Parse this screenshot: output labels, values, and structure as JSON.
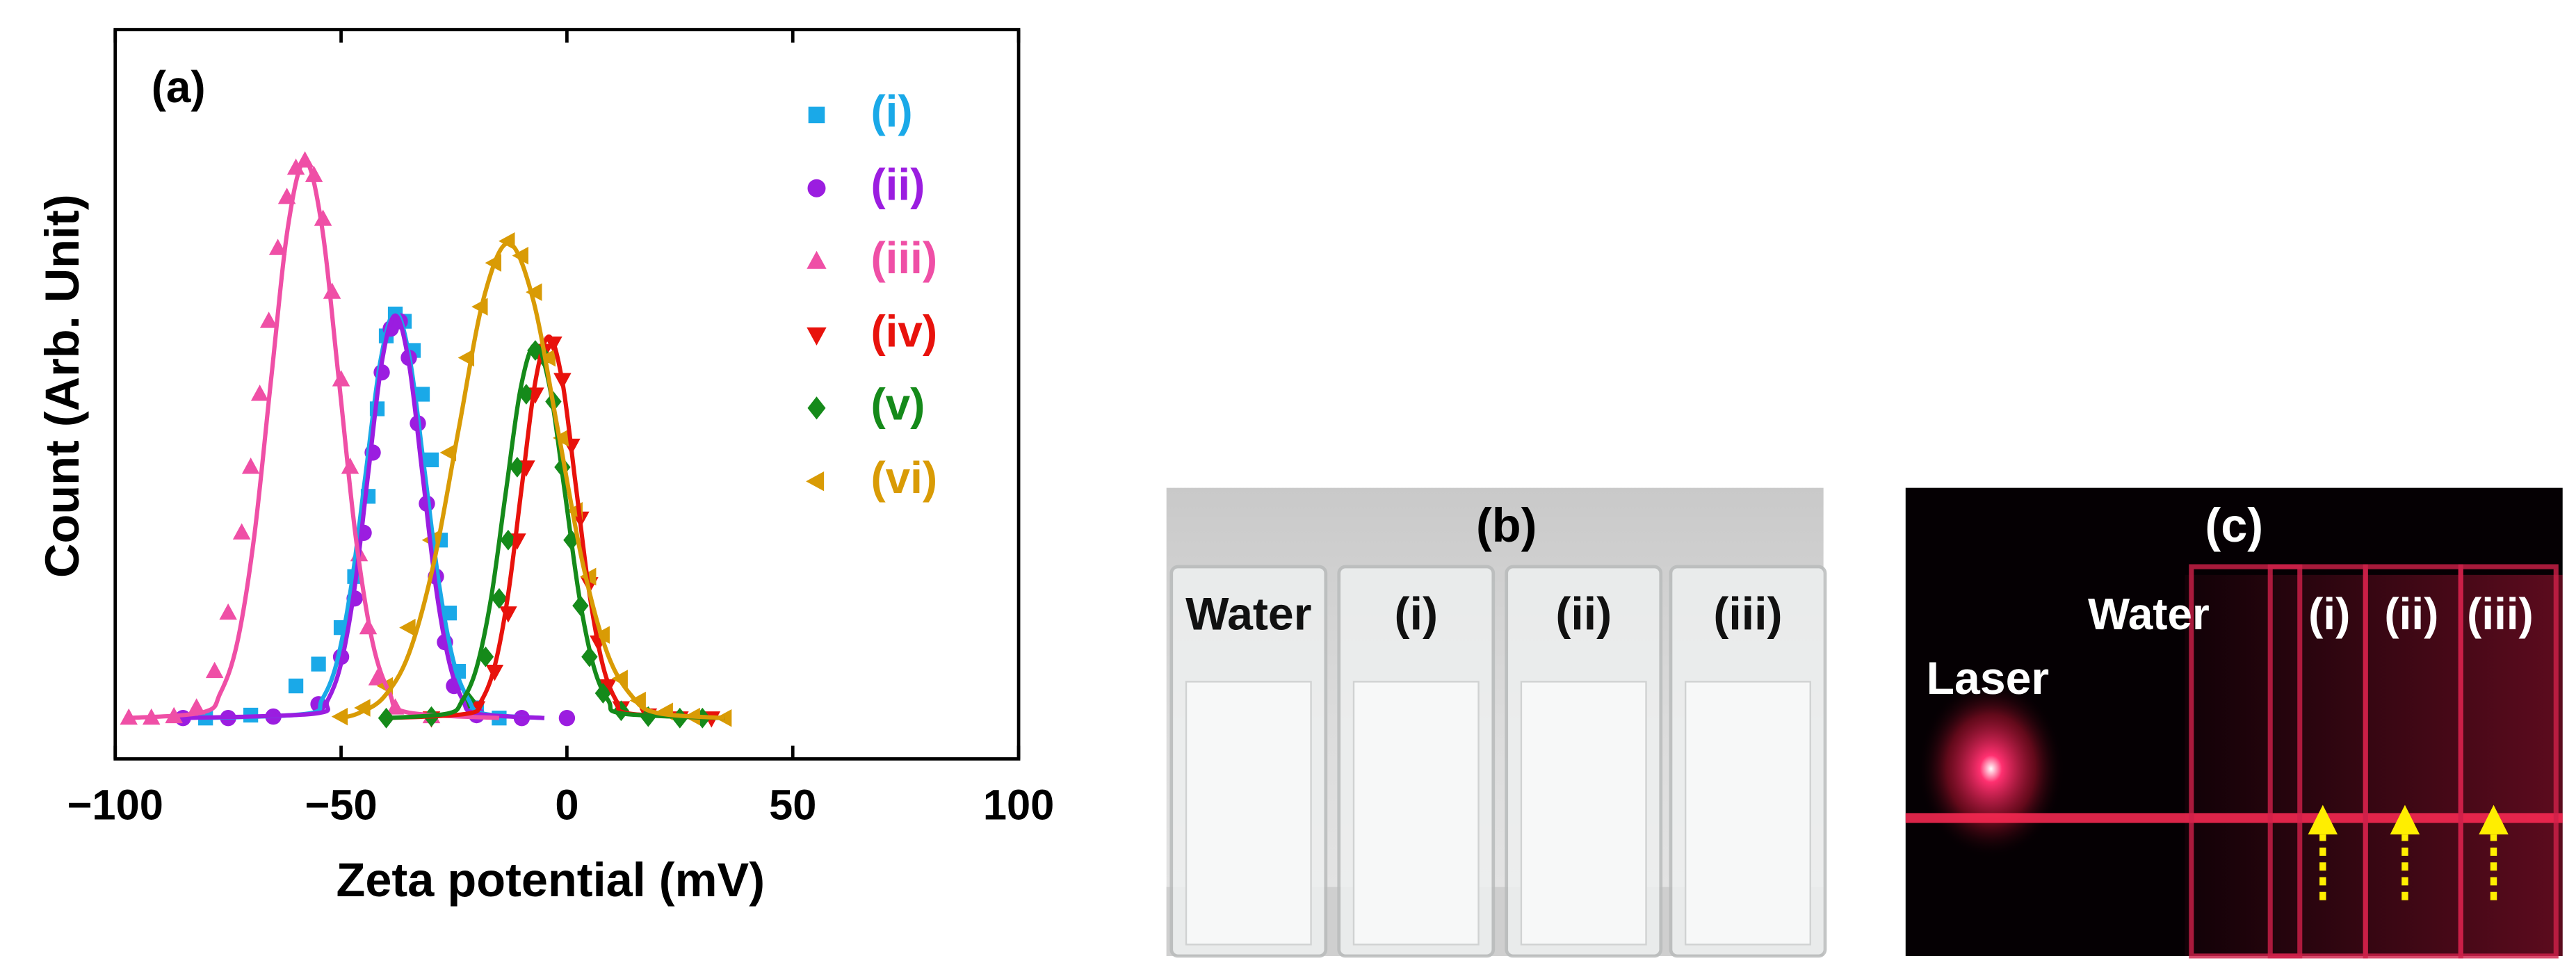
{
  "chart_data": {
    "type": "scatter",
    "panel_label": "(a)",
    "x_label": "Zeta potential (mV)",
    "y_label": "Count (Arb. Unit)",
    "xlim": [
      -100,
      100
    ],
    "xticks": [
      {
        "value": -100,
        "label": "−100"
      },
      {
        "value": -50,
        "label": "−50"
      },
      0,
      50,
      100
    ],
    "ylim": [
      0,
      1
    ],
    "series": [
      {
        "name": "(i)",
        "color": "#1aa9e8",
        "marker": "square",
        "x": [
          -80,
          -70,
          -60,
          -55,
          -50,
          -47,
          -44,
          -42,
          -40,
          -38,
          -36,
          -34,
          -32,
          -30,
          -28,
          -26,
          -24,
          -20,
          -15
        ],
        "values": [
          0.056,
          0.06,
          0.1,
          0.13,
          0.18,
          0.25,
          0.36,
          0.48,
          0.58,
          0.61,
          0.6,
          0.56,
          0.5,
          0.41,
          0.3,
          0.2,
          0.12,
          0.07,
          0.056
        ],
        "fit_x": [
          -80,
          -57.5,
          -54.25,
          -51,
          -47.75,
          -44.5,
          -41.25,
          -38,
          -34.75,
          -31.5,
          -28.25,
          -25,
          -21.75,
          -18.5,
          -5
        ],
        "fit_values": [
          0.056,
          0.062,
          0.081,
          0.131,
          0.237,
          0.394,
          0.547,
          0.613,
          0.547,
          0.394,
          0.237,
          0.131,
          0.081,
          0.062,
          0.056
        ]
      },
      {
        "name": "(ii)",
        "color": "#9b1de0",
        "marker": "circle",
        "x": [
          -85,
          -75,
          -65,
          -55,
          -50,
          -47,
          -45,
          -43,
          -41,
          -39,
          -37,
          -35,
          -33,
          -31,
          -29,
          -27,
          -25,
          -20,
          -10,
          0
        ],
        "values": [
          0.056,
          0.056,
          0.058,
          0.075,
          0.14,
          0.22,
          0.31,
          0.42,
          0.53,
          0.59,
          0.6,
          0.55,
          0.46,
          0.35,
          0.25,
          0.16,
          0.1,
          0.06,
          0.056,
          0.056
        ],
        "fit_x": [
          -85,
          -56,
          -53,
          -50,
          -47,
          -44,
          -41,
          -38,
          -35,
          -32,
          -29,
          -26,
          -23,
          -20,
          -5
        ],
        "fit_values": [
          0.056,
          0.062,
          0.08,
          0.131,
          0.235,
          0.391,
          0.543,
          0.608,
          0.543,
          0.391,
          0.235,
          0.131,
          0.08,
          0.062,
          0.056
        ]
      },
      {
        "name": "(iii)",
        "color": "#ef4fa6",
        "marker": "triangle-up",
        "x": [
          -97,
          -92,
          -87,
          -82,
          -78,
          -75,
          -72,
          -70,
          -68,
          -66,
          -64,
          -62,
          -60,
          -58,
          -56,
          -54,
          -52,
          -50,
          -48,
          -46,
          -44,
          -42,
          -38,
          -30
        ],
        "values": [
          0.056,
          0.056,
          0.058,
          0.07,
          0.12,
          0.2,
          0.31,
          0.4,
          0.5,
          0.6,
          0.7,
          0.77,
          0.81,
          0.82,
          0.8,
          0.74,
          0.64,
          0.52,
          0.4,
          0.28,
          0.18,
          0.11,
          0.07,
          0.058
        ],
        "fit_x": [
          -97,
          -80.5,
          -76.75,
          -73,
          -69.25,
          -65.5,
          -61.75,
          -58,
          -54.25,
          -50.5,
          -46.75,
          -43,
          -39.25,
          -35.5,
          -15
        ],
        "fit_values": [
          0.056,
          0.064,
          0.09,
          0.159,
          0.304,
          0.52,
          0.73,
          0.82,
          0.73,
          0.52,
          0.304,
          0.159,
          0.09,
          0.064,
          0.056
        ]
      },
      {
        "name": "(iv)",
        "color": "#e8120c",
        "marker": "triangle-down",
        "x": [
          -30,
          -20,
          -16,
          -13,
          -11,
          -9,
          -7,
          -5,
          -3,
          -1,
          1,
          3,
          5,
          7,
          9,
          12,
          18,
          25,
          32
        ],
        "values": [
          0.056,
          0.07,
          0.12,
          0.2,
          0.3,
          0.4,
          0.5,
          0.56,
          0.57,
          0.52,
          0.43,
          0.33,
          0.24,
          0.16,
          0.1,
          0.07,
          0.06,
          0.056,
          0.056
        ],
        "fit_x": [
          -40,
          -22,
          -19,
          -16,
          -13,
          -10,
          -7,
          -4,
          -1,
          2,
          5,
          8,
          11,
          14,
          35
        ],
        "fit_values": [
          0.056,
          0.062,
          0.079,
          0.127,
          0.226,
          0.373,
          0.517,
          0.579,
          0.517,
          0.373,
          0.226,
          0.127,
          0.079,
          0.062,
          0.056
        ]
      },
      {
        "name": "(v)",
        "color": "#158a1a",
        "marker": "diamond",
        "x": [
          -40,
          -30,
          -22,
          -18,
          -15,
          -13,
          -11,
          -9,
          -7,
          -5,
          -3,
          -1,
          1,
          3,
          5,
          8,
          12,
          18,
          25,
          30
        ],
        "values": [
          0.056,
          0.058,
          0.08,
          0.14,
          0.22,
          0.3,
          0.4,
          0.5,
          0.56,
          0.55,
          0.49,
          0.4,
          0.3,
          0.21,
          0.14,
          0.09,
          0.066,
          0.058,
          0.056,
          0.056
        ],
        "fit_x": [
          -40,
          -26.5,
          -23.25,
          -20,
          -16.75,
          -13.5,
          -10.25,
          -7,
          -3.75,
          -0.5,
          2.75,
          6,
          9.25,
          12.5,
          35
        ],
        "fit_values": [
          0.056,
          0.062,
          0.079,
          0.125,
          0.222,
          0.367,
          0.508,
          0.568,
          0.508,
          0.367,
          0.222,
          0.125,
          0.079,
          0.062,
          0.056
        ]
      },
      {
        "name": "(vi)",
        "color": "#d99b05",
        "marker": "triangle-left",
        "x": [
          -50,
          -45,
          -40,
          -35,
          -30,
          -26,
          -22,
          -19,
          -16,
          -13,
          -10,
          -7,
          -4,
          -1,
          2,
          5,
          8,
          12,
          16,
          22,
          28,
          35
        ],
        "values": [
          0.058,
          0.07,
          0.1,
          0.18,
          0.3,
          0.42,
          0.55,
          0.62,
          0.68,
          0.71,
          0.69,
          0.64,
          0.55,
          0.44,
          0.34,
          0.25,
          0.17,
          0.11,
          0.08,
          0.065,
          0.058,
          0.056
        ],
        "fit_x": [
          -50,
          -46,
          -40.5,
          -35,
          -29.5,
          -24,
          -18.5,
          -13,
          -7.5,
          -2,
          3.5,
          9,
          14.5,
          20,
          35
        ],
        "fit_values": [
          0.056,
          0.063,
          0.085,
          0.144,
          0.268,
          0.451,
          0.63,
          0.707,
          0.63,
          0.451,
          0.268,
          0.144,
          0.085,
          0.063,
          0.056
        ]
      }
    ]
  },
  "photos": [
    {
      "panel_label": "(b)",
      "labels": [
        "Water",
        "(i)",
        "(ii)",
        "(iii)"
      ]
    },
    {
      "panel_label": "(c)",
      "side_label": "Laser",
      "labels": [
        "Water",
        "(i)",
        "(ii)",
        "(iii)"
      ]
    }
  ]
}
